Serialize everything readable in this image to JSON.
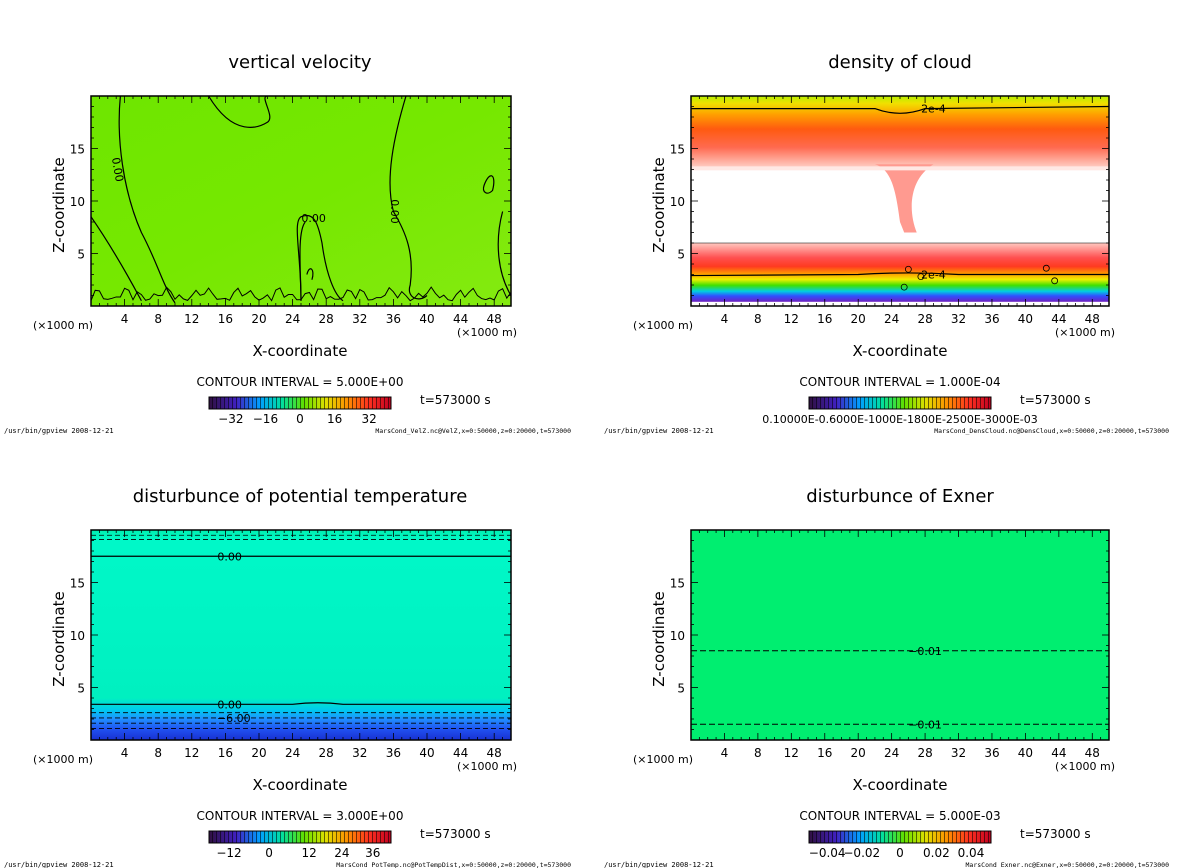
{
  "chart_data": [
    {
      "type": "heatmap",
      "title": "vertical velocity",
      "xlabel": "X-coordinate",
      "ylabel": "Z-coordinate",
      "xunit": "(×1000 m)",
      "xlim": [
        0,
        50
      ],
      "ylim": [
        0,
        20
      ],
      "xticks": [
        "4",
        "8",
        "12",
        "16",
        "20",
        "24",
        "28",
        "32",
        "36",
        "40",
        "44",
        "48"
      ],
      "yticks": [
        "5",
        "10",
        "15"
      ],
      "contour_interval": "CONTOUR INTERVAL = 5.000E+00",
      "time": "t=573000 s",
      "colorbar_ticks": [
        "−32",
        "−16",
        "0",
        "16",
        "32"
      ],
      "contour_labels": [
        "0.00",
        "0.00",
        "0.00"
      ],
      "footer_left": "/usr/bin/gpview  2008-12-21",
      "footer_right": "MarsCond_VelZ.nc@VelZ,x=0:50000,z=0:20000,t=573000"
    },
    {
      "type": "heatmap",
      "title": "density of cloud",
      "xlabel": "X-coordinate",
      "ylabel": "Z-coordinate",
      "xunit": "(×1000 m)",
      "xlim": [
        0,
        50
      ],
      "ylim": [
        0,
        20
      ],
      "xticks": [
        "4",
        "8",
        "12",
        "16",
        "20",
        "24",
        "28",
        "32",
        "36",
        "40",
        "44",
        "48"
      ],
      "yticks": [
        "5",
        "10",
        "15"
      ],
      "contour_interval": "CONTOUR INTERVAL = 1.000E-04",
      "time": "t=573000 s",
      "colorbar_ticks": [
        "0.10000E-0.6000E-1000E-1800E-2500E-3000E-03"
      ],
      "contour_labels": [
        "2e-4",
        "2e-4"
      ],
      "footer_left": "/usr/bin/gpview  2008-12-21",
      "footer_right": "MarsCond_DensCloud.nc@DensCloud,x=0:50000,z=0:20000,t=573000"
    },
    {
      "type": "heatmap",
      "title": "disturbunce of potential temperature",
      "xlabel": "X-coordinate",
      "ylabel": "Z-coordinate",
      "xunit": "(×1000 m)",
      "xlim": [
        0,
        50
      ],
      "ylim": [
        0,
        20
      ],
      "xticks": [
        "4",
        "8",
        "12",
        "16",
        "20",
        "24",
        "28",
        "32",
        "36",
        "40",
        "44",
        "48"
      ],
      "yticks": [
        "5",
        "10",
        "15"
      ],
      "contour_interval": "CONTOUR INTERVAL = 3.000E+00",
      "time": "t=573000 s",
      "colorbar_ticks": [
        "−12",
        "0",
        "12",
        "24",
        "36"
      ],
      "contour_labels": [
        "0.00",
        "0.00",
        "−6.00"
      ],
      "footer_left": "/usr/bin/gpview  2008-12-21",
      "footer_right": "MarsCond_PotTemp.nc@PotTempDist,x=0:50000,z=0:20000,t=573000"
    },
    {
      "type": "heatmap",
      "title": "disturbunce of Exner",
      "xlabel": "X-coordinate",
      "ylabel": "Z-coordinate",
      "xunit": "(×1000 m)",
      "xlim": [
        0,
        50
      ],
      "ylim": [
        0,
        20
      ],
      "xticks": [
        "4",
        "8",
        "12",
        "16",
        "20",
        "24",
        "28",
        "32",
        "36",
        "40",
        "44",
        "48"
      ],
      "yticks": [
        "5",
        "10",
        "15"
      ],
      "contour_interval": "CONTOUR INTERVAL = 5.000E-03",
      "time": "t=573000 s",
      "colorbar_ticks": [
        "−0.04",
        "−0.02",
        "0",
        "0.02",
        "0.04"
      ],
      "contour_labels": [
        "−0.01",
        "−0.01"
      ],
      "footer_left": "/usr/bin/gpview  2008-12-21",
      "footer_right": "MarsCond_Exner.nc@Exner,x=0:50000,z=0:20000,t=573000"
    }
  ]
}
